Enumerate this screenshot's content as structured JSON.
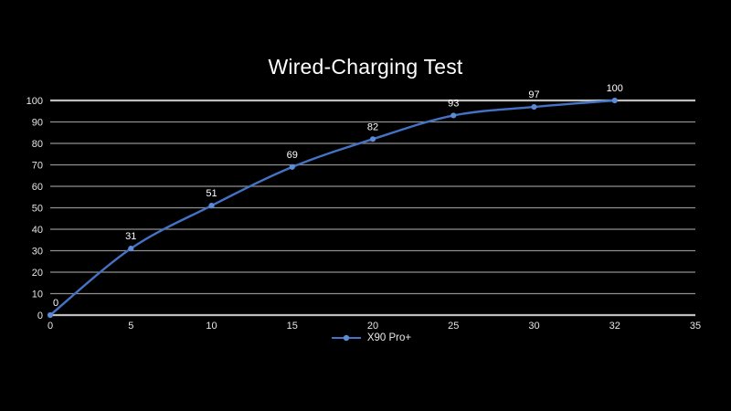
{
  "chart_data": {
    "type": "line",
    "title": "Wired-Charging Test",
    "xlabel": "",
    "ylabel": "",
    "categories": [
      "0",
      "5",
      "10",
      "15",
      "20",
      "25",
      "30",
      "32",
      "35"
    ],
    "series": [
      {
        "name": "X90 Pro+",
        "category_indices": [
          0,
          1,
          2,
          3,
          4,
          5,
          6,
          7
        ],
        "x": [
          0,
          5,
          10,
          15,
          20,
          25,
          30,
          32
        ],
        "values": [
          0,
          31,
          51,
          69,
          82,
          93,
          97,
          100
        ],
        "data_labels": [
          "0",
          "31",
          "51",
          "69",
          "82",
          "93",
          "97",
          "100"
        ],
        "color": "#4472c4",
        "marker_color": "#5b8bd5",
        "smooth": true
      }
    ],
    "ylim": [
      0,
      100
    ],
    "ytick_step": 10,
    "yticks": [
      "0",
      "10",
      "20",
      "30",
      "40",
      "50",
      "60",
      "70",
      "80",
      "90",
      "100"
    ],
    "grid": "horizontal",
    "legend_position": "bottom-center"
  },
  "colors": {
    "background": "#000000",
    "title_text": "#ffffff",
    "tick_text": "#e6e6e6",
    "data_label_text": "#ffffff",
    "gridline": "#8f8f8f",
    "axis_line": "#bdbdbd",
    "series_line": "#4472c4",
    "series_marker": "#5b8bd5"
  }
}
